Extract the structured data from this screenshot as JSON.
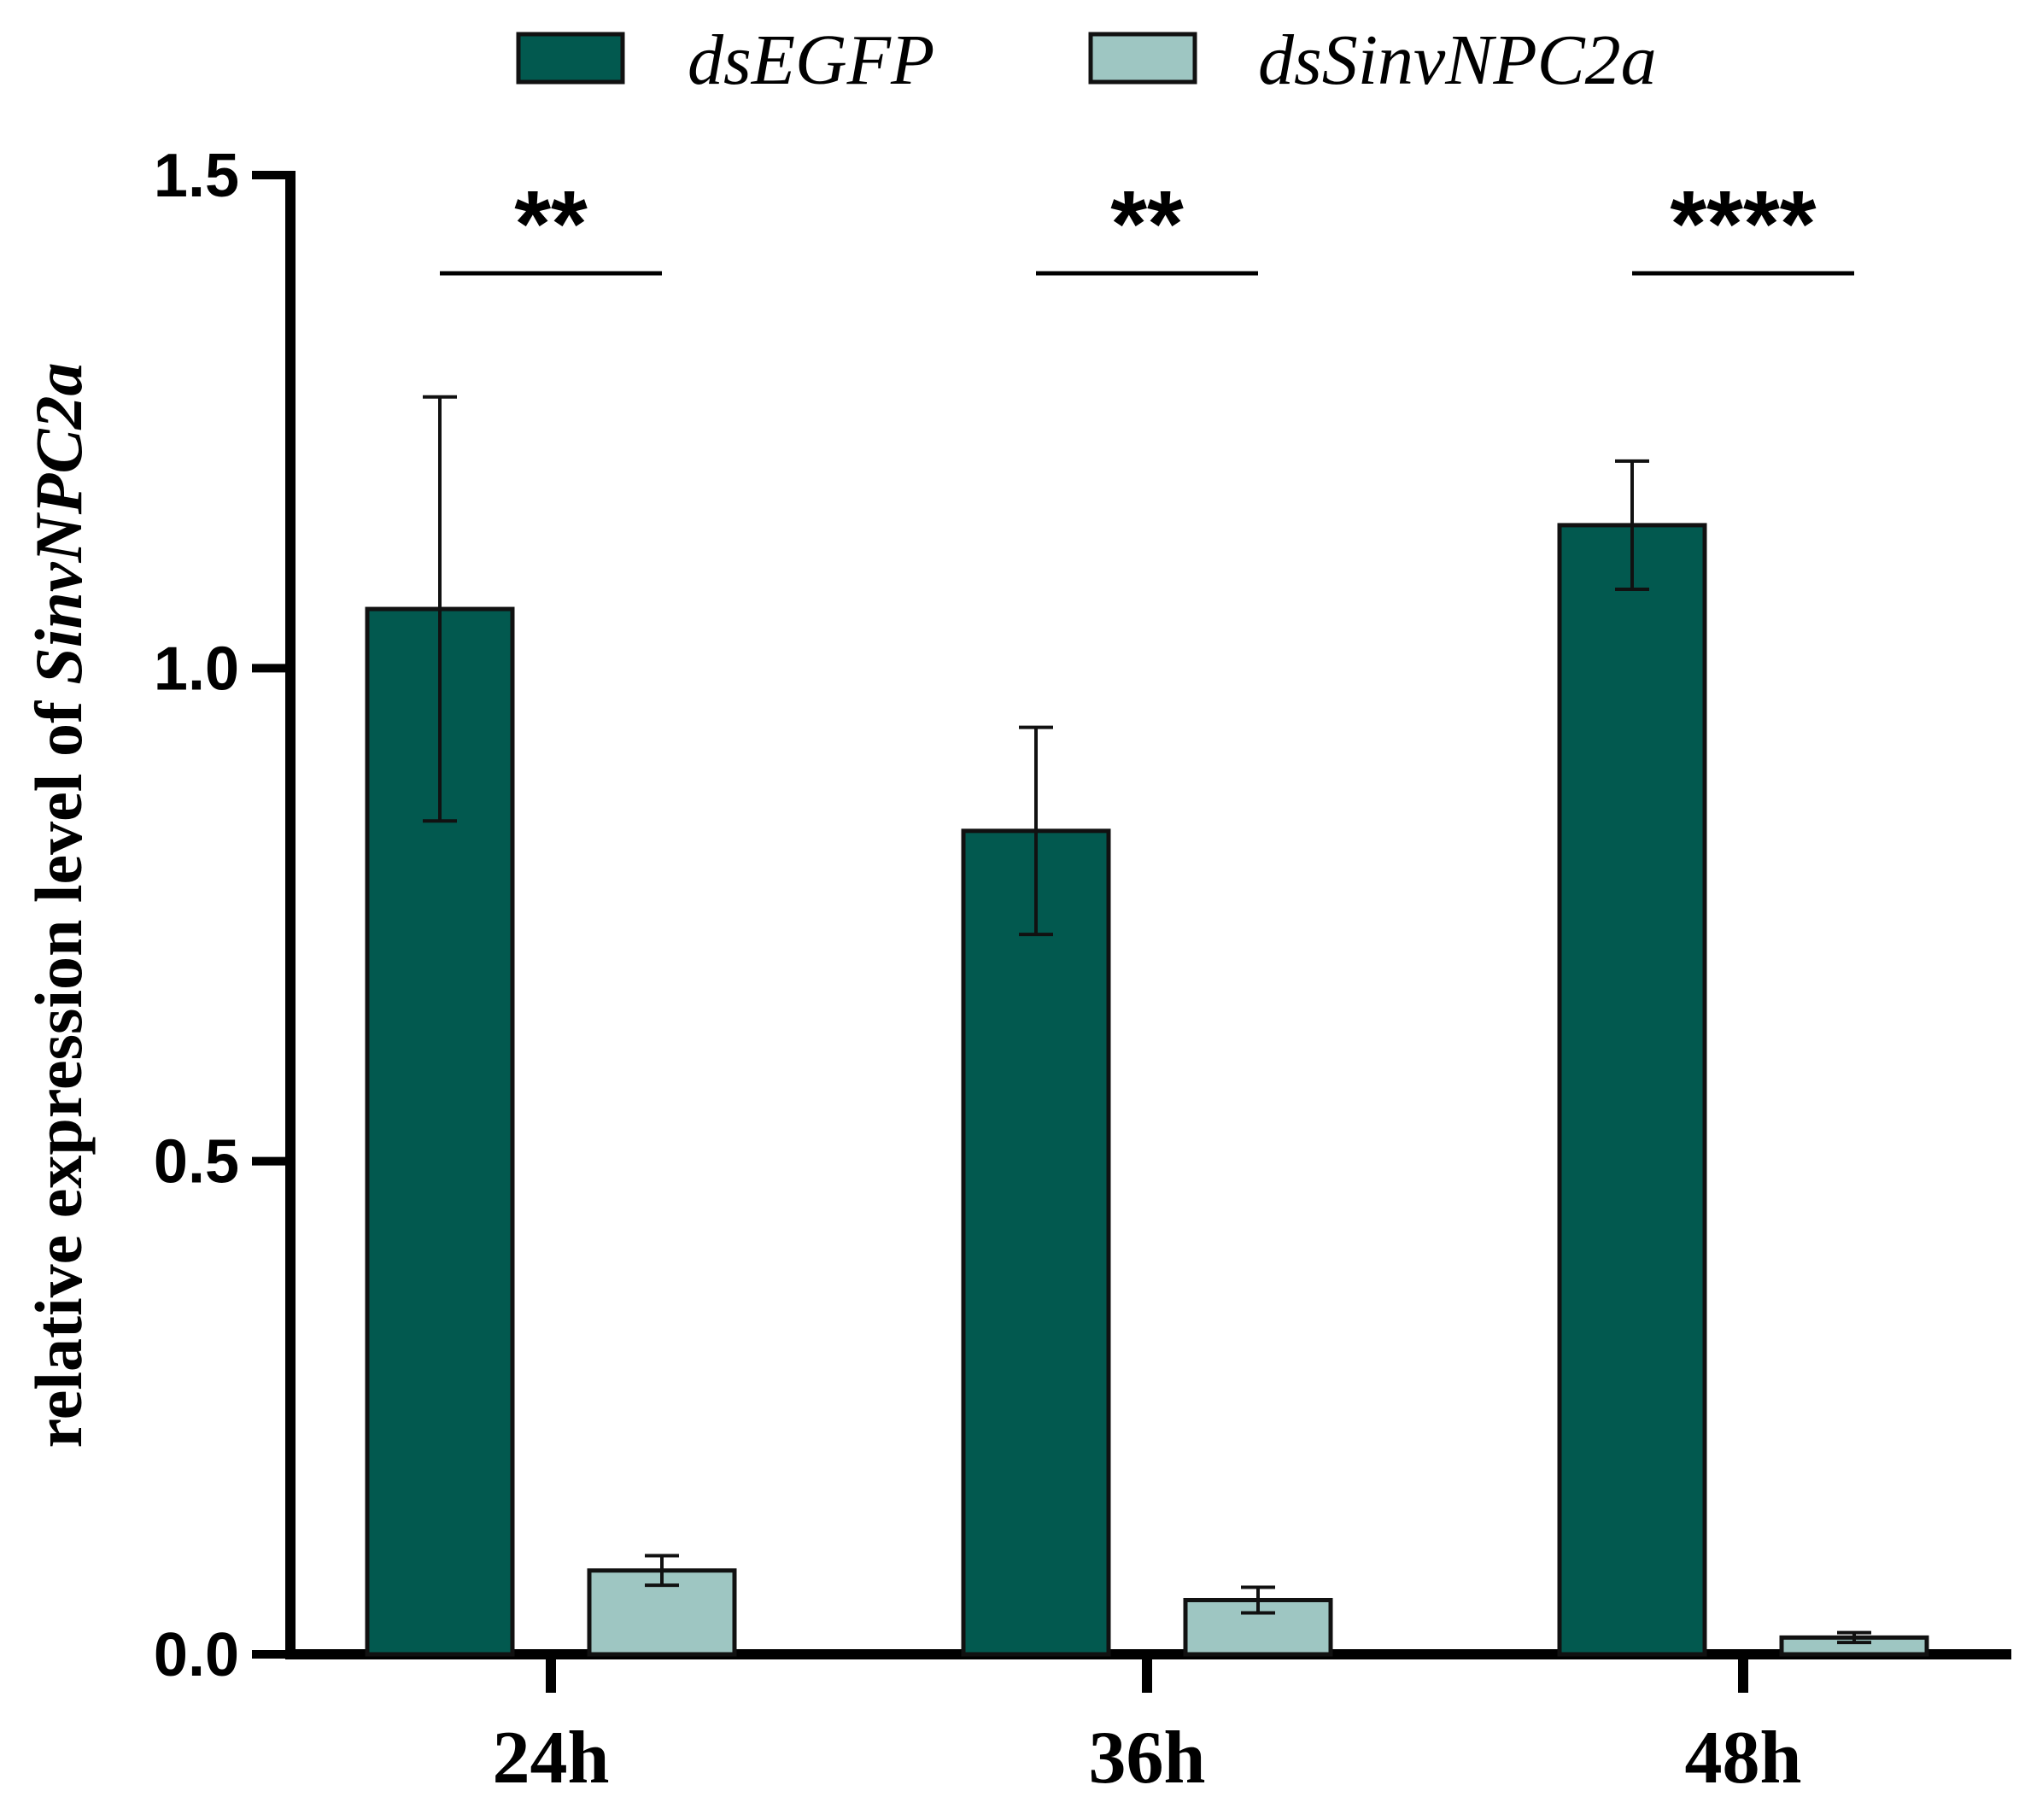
{
  "chart_data": {
    "type": "bar",
    "title": "",
    "xlabel": "",
    "ylabel_prefix": "relative expression level of ",
    "ylabel_italic": "SinvNPC2a",
    "ylim": [
      0,
      1.5
    ],
    "yticks": [
      0.0,
      0.5,
      1.0,
      1.5
    ],
    "ytick_labels": [
      "0.0",
      "0.5",
      "1.0",
      "1.5"
    ],
    "categories": [
      "24h",
      "36h",
      "48h"
    ],
    "series": [
      {
        "name": "dsEGFP",
        "color": "#02594f",
        "values": [
          1.06,
          0.835,
          1.145
        ],
        "errors": [
          0.215,
          0.105,
          0.065
        ]
      },
      {
        "name": "dsSinvNPC2a",
        "color": "#9ec6c2",
        "values": [
          0.085,
          0.055,
          0.017
        ],
        "errors": [
          0.015,
          0.013,
          0.005
        ]
      }
    ],
    "significance": [
      "**",
      "**",
      "****"
    ],
    "legend_position": "top",
    "grid": false
  }
}
